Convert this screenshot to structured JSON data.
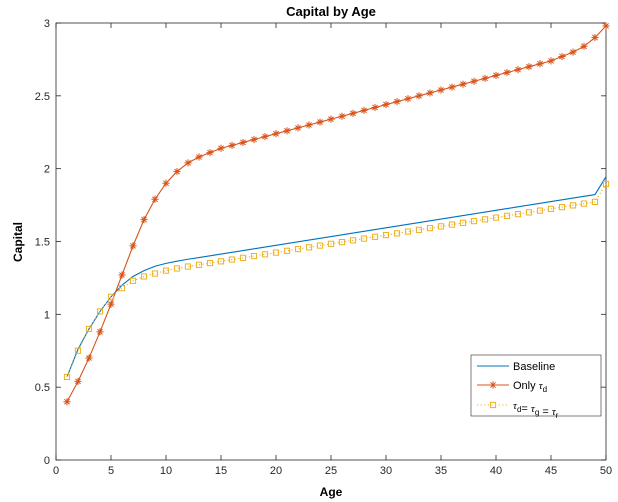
{
  "chart_data": {
    "type": "line",
    "title": "Capital by Age",
    "xlabel": "Age",
    "ylabel": "Capital",
    "xlim": [
      0,
      50
    ],
    "ylim": [
      0,
      3
    ],
    "xticks": [
      0,
      5,
      10,
      15,
      20,
      25,
      30,
      35,
      40,
      45,
      50
    ],
    "yticks": [
      0,
      0.5,
      1,
      1.5,
      2,
      2.5,
      3
    ],
    "xtick_labels": [
      "0",
      "5",
      "10",
      "15",
      "20",
      "25",
      "30",
      "35",
      "40",
      "45",
      "50"
    ],
    "ytick_labels": [
      "0",
      "0.5",
      "1",
      "1.5",
      "2",
      "2.5",
      "3"
    ],
    "grid": false,
    "legend_position": "bottom-right",
    "x": [
      1,
      2,
      3,
      4,
      5,
      6,
      7,
      8,
      9,
      10,
      11,
      12,
      13,
      14,
      15,
      16,
      17,
      18,
      19,
      20,
      21,
      22,
      23,
      24,
      25,
      26,
      27,
      28,
      29,
      30,
      31,
      32,
      33,
      34,
      35,
      36,
      37,
      38,
      39,
      40,
      41,
      42,
      43,
      44,
      45,
      46,
      47,
      48,
      49,
      50
    ],
    "series": [
      {
        "name": "Baseline",
        "color": "#0072BD",
        "style": "solid",
        "marker": "none",
        "values": [
          0.57,
          0.76,
          0.9,
          1.02,
          1.12,
          1.2,
          1.26,
          1.3,
          1.33,
          1.35,
          1.365,
          1.378,
          1.39,
          1.402,
          1.414,
          1.426,
          1.438,
          1.45,
          1.462,
          1.474,
          1.486,
          1.498,
          1.51,
          1.522,
          1.534,
          1.546,
          1.558,
          1.57,
          1.582,
          1.594,
          1.606,
          1.618,
          1.63,
          1.642,
          1.654,
          1.666,
          1.678,
          1.69,
          1.702,
          1.714,
          1.726,
          1.738,
          1.75,
          1.762,
          1.774,
          1.786,
          1.798,
          1.81,
          1.822,
          1.945
        ]
      },
      {
        "name_prefix": "Only",
        "name_symbol": "τ",
        "name_subscript": "d",
        "color": "#D95319",
        "style": "solid",
        "marker": "asterisk",
        "values": [
          0.4,
          0.54,
          0.7,
          0.88,
          1.07,
          1.27,
          1.47,
          1.65,
          1.79,
          1.9,
          1.98,
          2.04,
          2.08,
          2.11,
          2.14,
          2.16,
          2.18,
          2.2,
          2.22,
          2.24,
          2.26,
          2.28,
          2.3,
          2.32,
          2.34,
          2.36,
          2.38,
          2.4,
          2.42,
          2.44,
          2.46,
          2.48,
          2.5,
          2.52,
          2.54,
          2.56,
          2.58,
          2.6,
          2.62,
          2.64,
          2.66,
          2.68,
          2.7,
          2.72,
          2.74,
          2.77,
          2.8,
          2.84,
          2.9,
          2.98
        ]
      },
      {
        "name_parts": [
          {
            "sym": "τ",
            "sub": "d"
          },
          {
            "text": "= "
          },
          {
            "sym": "τ",
            "sub": "g"
          },
          {
            "text": " = "
          },
          {
            "sym": "τ",
            "sub": "r"
          }
        ],
        "color": "#EDB120",
        "style": "dotted",
        "marker": "square",
        "values": [
          0.57,
          0.75,
          0.9,
          1.02,
          1.12,
          1.18,
          1.23,
          1.26,
          1.28,
          1.3,
          1.315,
          1.328,
          1.34,
          1.352,
          1.364,
          1.376,
          1.388,
          1.4,
          1.412,
          1.424,
          1.436,
          1.448,
          1.46,
          1.472,
          1.484,
          1.496,
          1.508,
          1.52,
          1.532,
          1.544,
          1.556,
          1.568,
          1.58,
          1.592,
          1.604,
          1.616,
          1.628,
          1.64,
          1.652,
          1.664,
          1.676,
          1.688,
          1.7,
          1.712,
          1.724,
          1.736,
          1.748,
          1.76,
          1.772,
          1.895
        ]
      }
    ]
  }
}
